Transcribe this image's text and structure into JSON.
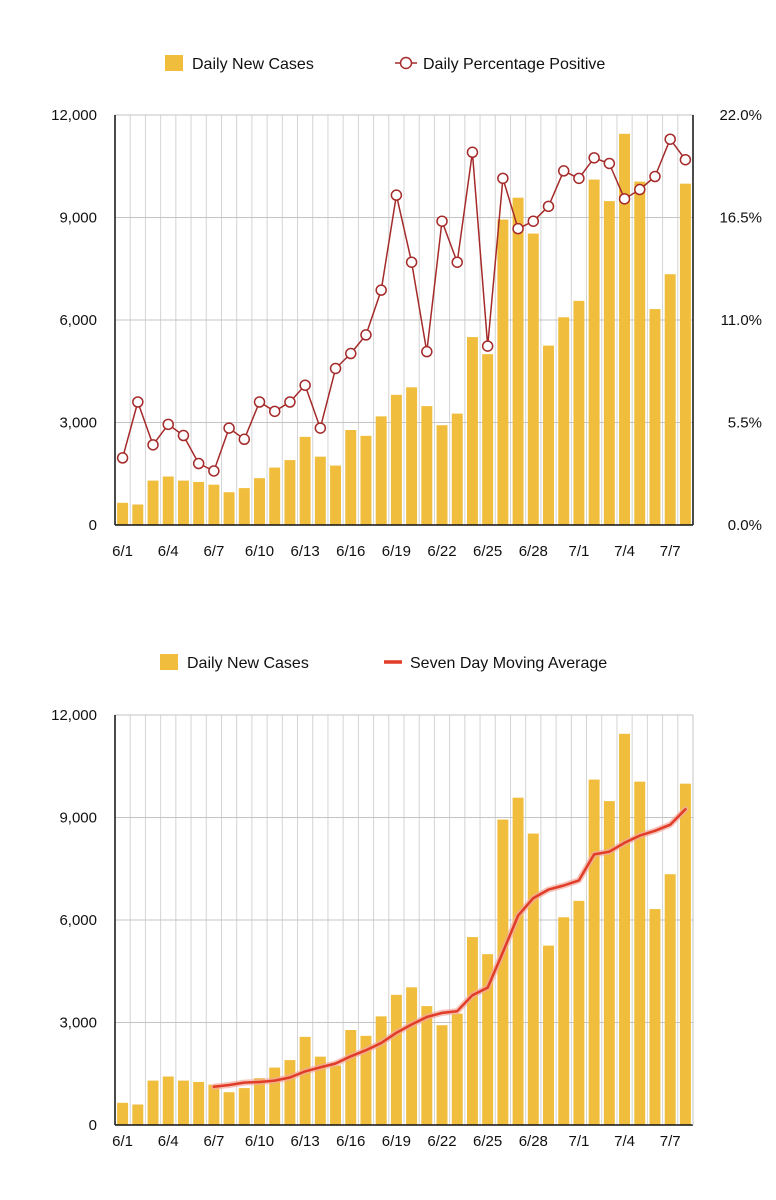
{
  "chart_data": [
    {
      "type": "bar+line",
      "title": "",
      "categories": [
        "6/1",
        "6/2",
        "6/3",
        "6/4",
        "6/5",
        "6/6",
        "6/7",
        "6/8",
        "6/9",
        "6/10",
        "6/11",
        "6/12",
        "6/13",
        "6/14",
        "6/15",
        "6/16",
        "6/17",
        "6/18",
        "6/19",
        "6/20",
        "6/21",
        "6/22",
        "6/23",
        "6/24",
        "6/25",
        "6/26",
        "6/27",
        "6/28",
        "6/29",
        "6/30",
        "7/1",
        "7/2",
        "7/3",
        "7/4",
        "7/5",
        "7/6",
        "7/7",
        "7/8"
      ],
      "x_tick_labels": [
        "6/1",
        "6/4",
        "6/7",
        "6/10",
        "6/13",
        "6/16",
        "6/19",
        "6/22",
        "6/25",
        "6/28",
        "7/1",
        "7/4",
        "7/7"
      ],
      "series": [
        {
          "name": "Daily New Cases",
          "kind": "bar",
          "axis": "left",
          "color": "#F0BE3C",
          "values": [
            650,
            600,
            1300,
            1420,
            1300,
            1260,
            1180,
            960,
            1080,
            1370,
            1680,
            1900,
            2580,
            2000,
            1740,
            2780,
            2610,
            3180,
            3810,
            4030,
            3480,
            2920,
            3260,
            5500,
            5000,
            8940,
            9580,
            8530,
            5250,
            6080,
            6560,
            10110,
            9480,
            11450,
            10050,
            6320,
            7340,
            9990
          ]
        },
        {
          "name": "Daily Percentage Positive",
          "kind": "line-markers",
          "axis": "right",
          "color": "#A52A2A",
          "values": [
            3.6,
            6.6,
            4.3,
            5.4,
            4.8,
            3.3,
            2.9,
            5.2,
            4.6,
            6.6,
            6.1,
            6.6,
            7.5,
            5.2,
            8.4,
            9.2,
            10.2,
            12.6,
            17.7,
            14.1,
            9.3,
            16.3,
            14.1,
            20.0,
            9.6,
            18.6,
            15.9,
            16.3,
            17.1,
            19.0,
            18.6,
            19.7,
            19.4,
            17.5,
            18.0,
            18.7,
            20.7,
            19.6
          ]
        }
      ],
      "yleft": {
        "ylim": [
          0,
          12000
        ],
        "ticks": [
          "0",
          "3,000",
          "6,000",
          "9,000",
          "12,000"
        ]
      },
      "yright": {
        "ylim": [
          0,
          22
        ],
        "ticks": [
          "0.0%",
          "5.5%",
          "11.0%",
          "16.5%",
          "22.0%"
        ]
      },
      "legend": [
        "Daily New Cases",
        "Daily Percentage Positive"
      ],
      "grid": true
    },
    {
      "type": "bar+line",
      "title": "",
      "categories": [
        "6/1",
        "6/2",
        "6/3",
        "6/4",
        "6/5",
        "6/6",
        "6/7",
        "6/8",
        "6/9",
        "6/10",
        "6/11",
        "6/12",
        "6/13",
        "6/14",
        "6/15",
        "6/16",
        "6/17",
        "6/18",
        "6/19",
        "6/20",
        "6/21",
        "6/22",
        "6/23",
        "6/24",
        "6/25",
        "6/26",
        "6/27",
        "6/28",
        "6/29",
        "6/30",
        "7/1",
        "7/2",
        "7/3",
        "7/4",
        "7/5",
        "7/6",
        "7/7",
        "7/8"
      ],
      "x_tick_labels": [
        "6/1",
        "6/4",
        "6/7",
        "6/10",
        "6/13",
        "6/16",
        "6/19",
        "6/22",
        "6/25",
        "6/28",
        "7/1",
        "7/4",
        "7/7"
      ],
      "series": [
        {
          "name": "Daily New Cases",
          "kind": "bar",
          "axis": "left",
          "color": "#F0BE3C",
          "values": [
            650,
            600,
            1300,
            1420,
            1300,
            1260,
            1180,
            960,
            1080,
            1370,
            1680,
            1900,
            2580,
            2000,
            1740,
            2780,
            2610,
            3180,
            3810,
            4030,
            3480,
            2920,
            3260,
            5500,
            5000,
            8940,
            9580,
            8530,
            5250,
            6080,
            6560,
            10110,
            9480,
            11450,
            10050,
            6320,
            7340,
            9990
          ]
        },
        {
          "name": "Seven Day Moving Average",
          "kind": "line",
          "axis": "left",
          "color": "#E03C28",
          "start_index": 6,
          "values": [
            null,
            null,
            null,
            null,
            null,
            null,
            1120,
            1170,
            1240,
            1260,
            1300,
            1390,
            1570,
            1690,
            1800,
            2010,
            2190,
            2400,
            2700,
            2940,
            3160,
            3280,
            3330,
            3800,
            4020,
            5060,
            6130,
            6640,
            6890,
            7010,
            7160,
            7920,
            8000,
            8260,
            8470,
            8610,
            8790,
            9240
          ]
        }
      ],
      "yleft": {
        "ylim": [
          0,
          12000
        ],
        "ticks": [
          "0",
          "3,000",
          "6,000",
          "9,000",
          "12,000"
        ]
      },
      "legend": [
        "Daily New Cases",
        "Seven Day Moving Average"
      ],
      "grid": true
    }
  ]
}
